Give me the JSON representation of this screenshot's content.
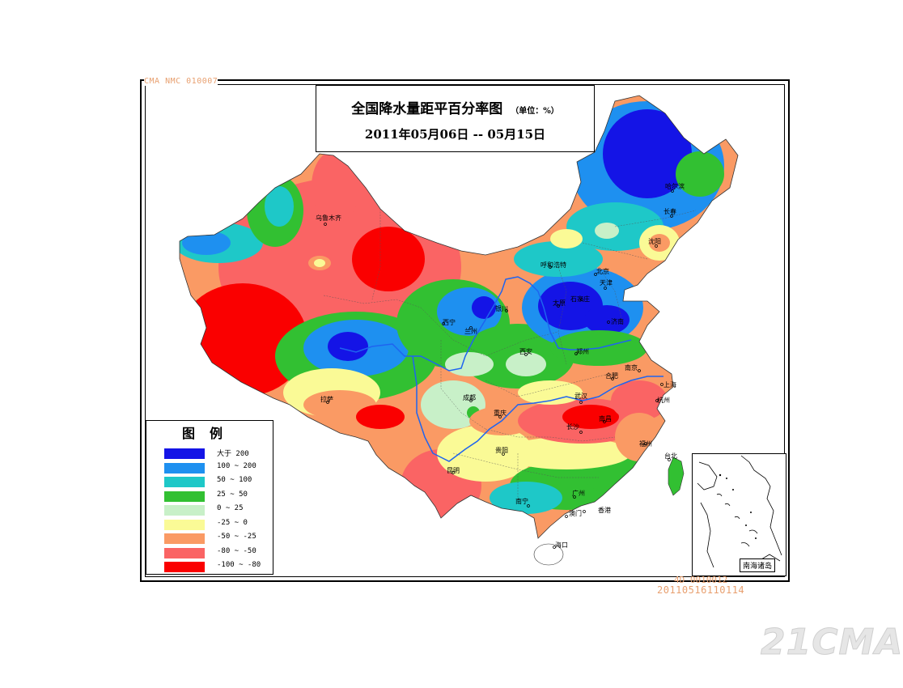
{
  "stamp_top": "CMA NMC 010007",
  "title": {
    "main": "全国降水量距平百分率图",
    "unit": "（单位：%）",
    "dates": "2011年05月06日 -- 05月15日"
  },
  "legend": {
    "title": "图例",
    "items": [
      {
        "label": "大于 200",
        "color": "#1414e6"
      },
      {
        "label": "100 ~ 200",
        "color": "#1e90f0"
      },
      {
        "label": "50 ~ 100",
        "color": "#1ec8c8"
      },
      {
        "label": "25 ~ 50",
        "color": "#32c032"
      },
      {
        "label": "0 ~ 25",
        "color": "#c8f0c8"
      },
      {
        "label": "-25 ~ 0",
        "color": "#fafa96"
      },
      {
        "label": "-50 ~ -25",
        "color": "#fa9a64"
      },
      {
        "label": "-80 ~ -50",
        "color": "#fa6464"
      },
      {
        "label": "-100 ~ -80",
        "color": "#fa0000"
      }
    ]
  },
  "cities": {
    "wulumuqi": "乌鲁木齐",
    "lasa": "拉萨",
    "xining": "西宁",
    "lanzhou": "兰州",
    "yinchuan": "银川",
    "huhehaote": "呼和浩特",
    "beijing": "北京",
    "tianjin": "天津",
    "taiyuan": "太原",
    "shijiazhuang": "石家庄",
    "jinan": "济南",
    "zhengzhou": "郑州",
    "xian": "西安",
    "chengdu": "成都",
    "chongqing": "重庆",
    "guiyang": "贵阳",
    "kunming": "昆明",
    "nanning": "南宁",
    "guangzhou": "广州",
    "xianggang": "香港",
    "aomen": "澳门",
    "haikou": "海口",
    "changsha": "长沙",
    "wuhan": "武汉",
    "nanchang": "南昌",
    "hefei": "合肥",
    "nanjing": "南京",
    "shanghai": "上海",
    "hangzhou": "杭州",
    "fuzhou": "福州",
    "taibei": "台北",
    "haerbin": "哈尔滨",
    "changchun": "长春",
    "shenyang": "沈阳"
  },
  "inset_label": "南海诸岛",
  "stamp_bottom_1": "4D 0010012",
  "stamp_bottom_2": "20110516110114",
  "watermark": "21CMA"
}
